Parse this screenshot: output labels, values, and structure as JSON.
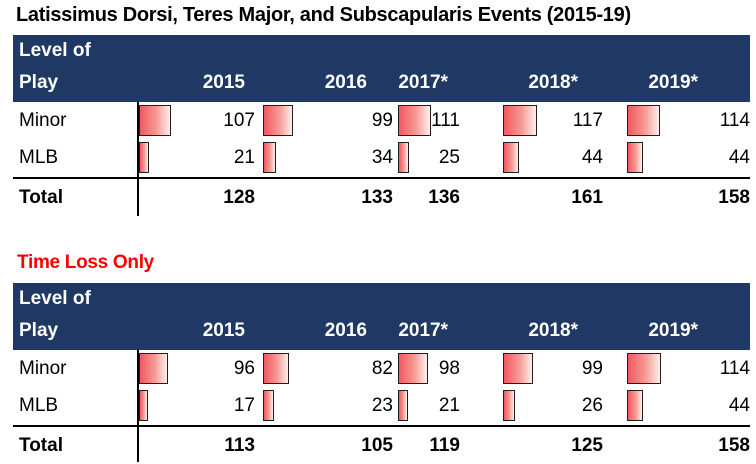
{
  "report": {
    "title": "Latissimus Dorsi, Teres Major, and Subscapularis Events (2015-19)",
    "time_loss_title": "Time Loss Only"
  },
  "header": {
    "line1": "Level of",
    "line2": "Play"
  },
  "columns": [
    "2015",
    "2016",
    "2017*",
    "2018*",
    "2019*"
  ],
  "tables": [
    {
      "id": "all-events",
      "bar_max": 117,
      "rows": [
        {
          "label": "Minor",
          "values": [
            107,
            99,
            111,
            117,
            114
          ]
        },
        {
          "label": "MLB",
          "values": [
            21,
            34,
            25,
            44,
            44
          ]
        }
      ],
      "total": {
        "label": "Total",
        "values": [
          128,
          133,
          136,
          161,
          158
        ]
      }
    },
    {
      "id": "time-loss-only",
      "bar_max": 114,
      "rows": [
        {
          "label": "Minor",
          "values": [
            96,
            82,
            98,
            99,
            114
          ]
        },
        {
          "label": "MLB",
          "values": [
            17,
            23,
            21,
            26,
            44
          ]
        }
      ],
      "total": {
        "label": "Total",
        "values": [
          113,
          105,
          119,
          125,
          158
        ]
      }
    }
  ],
  "colors": {
    "header_bg": "#1F3864",
    "header_text": "#FFFFFF",
    "bar_gradient_start": "#F1585F",
    "bar_gradient_end": "#FEEFEB",
    "bar_border": "#1F1F1F",
    "subtitle_red": "#FF0000",
    "rule_black": "#000000"
  },
  "chart_data": [
    {
      "type": "table",
      "title": "Latissimus Dorsi, Teres Major, and Subscapularis Events (2015-19)",
      "columns": [
        "Level of Play",
        "2015",
        "2016",
        "2017*",
        "2018*",
        "2019*"
      ],
      "rows": [
        [
          "Minor",
          107,
          99,
          111,
          117,
          114
        ],
        [
          "MLB",
          21,
          34,
          25,
          44,
          44
        ],
        [
          "Total",
          128,
          133,
          136,
          161,
          158
        ]
      ],
      "notes": "Red gradient data bars beside Minor and MLB values, width proportional to value"
    },
    {
      "type": "table",
      "title": "Time Loss Only",
      "columns": [
        "Level of Play",
        "2015",
        "2016",
        "2017*",
        "2018*",
        "2019*"
      ],
      "rows": [
        [
          "Minor",
          96,
          82,
          98,
          99,
          114
        ],
        [
          "MLB",
          17,
          23,
          21,
          26,
          44
        ],
        [
          "Total",
          113,
          105,
          119,
          125,
          158
        ]
      ],
      "notes": "Red gradient data bars beside Minor and MLB values, width proportional to value"
    }
  ]
}
